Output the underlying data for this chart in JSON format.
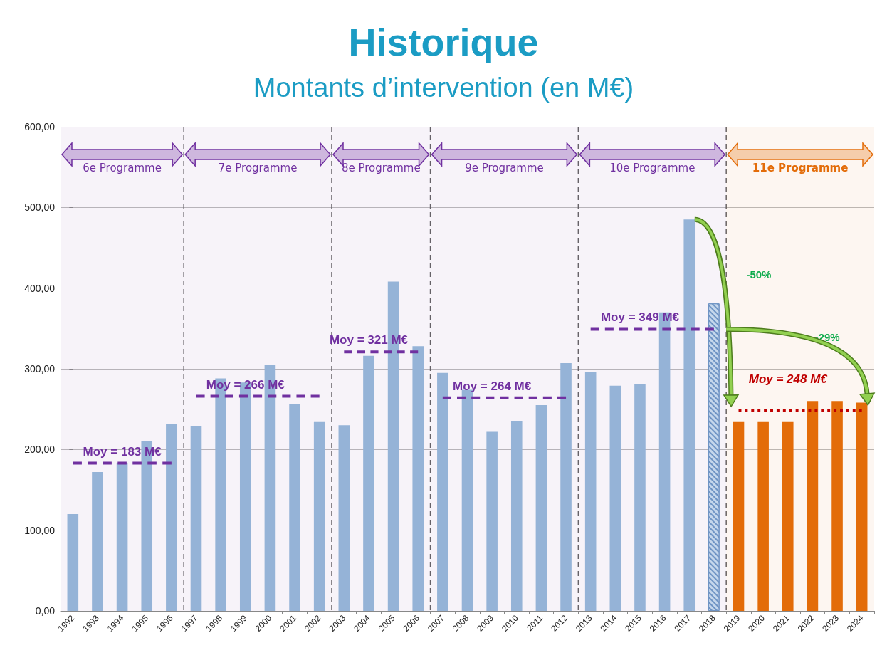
{
  "chart_data": {
    "type": "bar",
    "title": "Historique",
    "subtitle": "Montants d’intervention (en M€)",
    "categories": [
      "1992",
      "1993",
      "1994",
      "1995",
      "1996",
      "1997",
      "1998",
      "1999",
      "2000",
      "2001",
      "2002",
      "2003",
      "2004",
      "2005",
      "2006",
      "2007",
      "2008",
      "2009",
      "2010",
      "2011",
      "2012",
      "2013",
      "2014",
      "2015",
      "2016",
      "2017",
      "2018",
      "2019",
      "2020",
      "2021",
      "2022",
      "2023",
      "2024"
    ],
    "series": [
      {
        "values": [
          120,
          172,
          183,
          210,
          232,
          229,
          288,
          283,
          305,
          256,
          234,
          230,
          316,
          408,
          328,
          295,
          274,
          222,
          235,
          255,
          307,
          296,
          279,
          281,
          370,
          485,
          381,
          234,
          234,
          234,
          260,
          260,
          258
        ],
        "colors": [
          "#95b3d7",
          "#95b3d7",
          "#95b3d7",
          "#95b3d7",
          "#95b3d7",
          "#95b3d7",
          "#95b3d7",
          "#95b3d7",
          "#95b3d7",
          "#95b3d7",
          "#95b3d7",
          "#95b3d7",
          "#95b3d7",
          "#95b3d7",
          "#95b3d7",
          "#95b3d7",
          "#95b3d7",
          "#95b3d7",
          "#95b3d7",
          "#95b3d7",
          "#95b3d7",
          "#95b3d7",
          "#95b3d7",
          "#95b3d7",
          "#95b3d7",
          "#95b3d7",
          "#c5d7ec",
          "#e36c09",
          "#e36c09",
          "#e36c09",
          "#e36c09",
          "#e36c09",
          "#e36c09"
        ]
      },
      {
        "type": "line",
        "name": "Moy = 183 M€",
        "color": "#7030a0",
        "line_style": "dashed",
        "values": [
          183,
          183,
          183,
          183,
          183,
          null,
          null,
          null,
          null,
          null,
          null,
          null,
          null,
          null,
          null,
          null,
          null,
          null,
          null,
          null,
          null,
          null,
          null,
          null,
          null,
          null,
          null,
          null,
          null,
          null,
          null,
          null,
          null
        ]
      },
      {
        "type": "line",
        "name": "Moy = 266 M€",
        "color": "#7030a0",
        "line_style": "dashed",
        "values": [
          null,
          null,
          null,
          null,
          null,
          266,
          266,
          266,
          266,
          266,
          266,
          null,
          null,
          null,
          null,
          null,
          null,
          null,
          null,
          null,
          null,
          null,
          null,
          null,
          null,
          null,
          null,
          null,
          null,
          null,
          null,
          null,
          null
        ]
      },
      {
        "type": "line",
        "name": "Moy = 321 M€",
        "color": "#7030a0",
        "line_style": "dashed",
        "values": [
          null,
          null,
          null,
          null,
          null,
          null,
          null,
          null,
          null,
          null,
          null,
          321,
          321,
          321,
          321,
          null,
          null,
          null,
          null,
          null,
          null,
          null,
          null,
          null,
          null,
          null,
          null,
          null,
          null,
          null,
          null,
          null,
          null
        ]
      },
      {
        "type": "line",
        "name": "Moy = 264 M€",
        "color": "#7030a0",
        "line_style": "dashed",
        "values": [
          null,
          null,
          null,
          null,
          null,
          null,
          null,
          null,
          null,
          null,
          null,
          null,
          null,
          null,
          null,
          264,
          264,
          264,
          264,
          264,
          264,
          null,
          null,
          null,
          null,
          null,
          null,
          null,
          null,
          null,
          null,
          null,
          null
        ]
      },
      {
        "type": "line",
        "name": "Moy = 349 M€",
        "color": "#7030a0",
        "line_style": "dashed",
        "values": [
          null,
          null,
          null,
          null,
          null,
          null,
          null,
          null,
          null,
          null,
          null,
          null,
          null,
          null,
          null,
          null,
          null,
          null,
          null,
          null,
          null,
          349,
          349,
          349,
          349,
          349,
          349,
          null,
          null,
          null,
          null,
          null,
          null
        ]
      },
      {
        "type": "line",
        "name": "Moy = 248 M€",
        "color": "#c00000",
        "line_style": "dotted",
        "values": [
          null,
          null,
          null,
          null,
          null,
          null,
          null,
          null,
          null,
          null,
          null,
          null,
          null,
          null,
          null,
          null,
          null,
          null,
          null,
          null,
          null,
          null,
          null,
          null,
          null,
          null,
          null,
          248,
          248,
          248,
          248,
          248,
          248
        ]
      }
    ],
    "bands": [
      {
        "axis": "x",
        "from": "1992",
        "to": "1996",
        "label": "6e Programme",
        "color": "#7030a0"
      },
      {
        "axis": "x",
        "from": "1997",
        "to": "2002",
        "label": "7e Programme",
        "color": "#7030a0"
      },
      {
        "axis": "x",
        "from": "2003",
        "to": "2006",
        "label": "8e Programme",
        "color": "#7030a0"
      },
      {
        "axis": "x",
        "from": "2007",
        "to": "2012",
        "label": "9e Programme",
        "color": "#7030a0"
      },
      {
        "axis": "x",
        "from": "2013",
        "to": "2018",
        "label": "10e Programme",
        "color": "#7030a0"
      },
      {
        "axis": "x",
        "from": "2019",
        "to": "2024",
        "label": "11e Programme",
        "color": "#e36c09"
      }
    ],
    "annotations": [
      "-50%",
      "-29%"
    ],
    "ylim": [
      0,
      600
    ],
    "yticks": [
      {
        "value": 0,
        "label": "0,00"
      },
      {
        "value": 100,
        "label": "100,00"
      },
      {
        "value": 200,
        "label": "200,00"
      },
      {
        "value": 300,
        "label": "300,00"
      },
      {
        "value": 400,
        "label": "400,00"
      },
      {
        "value": 500,
        "label": "500,00"
      },
      {
        "value": 600,
        "label": "600,00"
      }
    ],
    "grid": "y",
    "legend": false,
    "marker": "none"
  }
}
